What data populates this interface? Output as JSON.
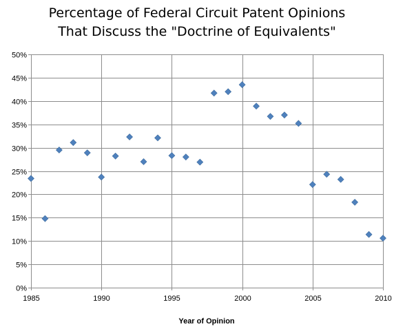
{
  "chart_data": {
    "type": "scatter",
    "title_lines": [
      "Percentage of Federal Circuit Patent Opinions",
      "That Discuss the \"Doctrine of Equivalents\""
    ],
    "xlabel": "Year of Opinion",
    "ylabel": "",
    "xlim": [
      1985,
      2010
    ],
    "ylim": [
      0,
      50
    ],
    "x_ticks": [
      "1985",
      "1990",
      "1995",
      "2000",
      "2005",
      "2010"
    ],
    "x_tick_values": [
      1985,
      1990,
      1995,
      2000,
      2005,
      2010
    ],
    "y_ticks": [
      "0%",
      "5%",
      "10%",
      "15%",
      "20%",
      "25%",
      "30%",
      "35%",
      "40%",
      "45%",
      "50%"
    ],
    "y_tick_values": [
      0,
      5,
      10,
      15,
      20,
      25,
      30,
      35,
      40,
      45,
      50
    ],
    "grid": true,
    "marker_color": "#4F81BD",
    "x": [
      1985,
      1986,
      1987,
      1988,
      1989,
      1990,
      1991,
      1992,
      1993,
      1994,
      1995,
      1996,
      1997,
      1998,
      1999,
      2000,
      2001,
      2002,
      2003,
      2004,
      2005,
      2006,
      2007,
      2008,
      2009,
      2010
    ],
    "y": [
      23.4,
      14.8,
      29.5,
      31.1,
      28.9,
      23.7,
      28.2,
      32.3,
      27.0,
      32.1,
      28.3,
      28.0,
      26.9,
      41.7,
      42.0,
      43.5,
      38.9,
      36.7,
      37.0,
      35.2,
      22.1,
      24.3,
      23.2,
      18.3,
      11.4,
      10.6
    ]
  }
}
